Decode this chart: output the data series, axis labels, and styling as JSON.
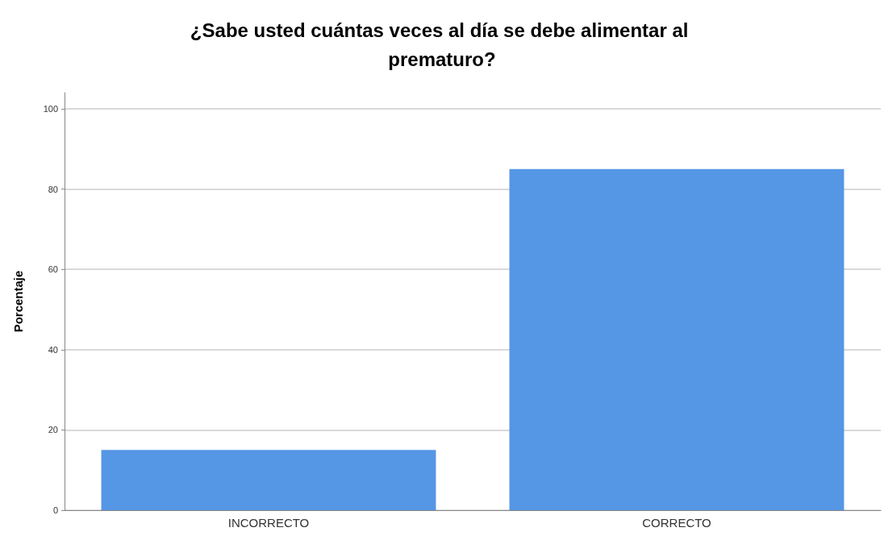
{
  "chart_data": {
    "type": "bar",
    "title": "¿Sabe usted cuántas veces al día se debe alimentar al prematuro?",
    "ylabel": "Porcentaje",
    "categories": [
      "INCORRECTO",
      "CORRECTO"
    ],
    "values": [
      15,
      85
    ],
    "color": "#5596e5",
    "ylim": [
      0,
      104
    ],
    "yticks": [
      0,
      20,
      40,
      60,
      80,
      100
    ],
    "grid": "y"
  }
}
